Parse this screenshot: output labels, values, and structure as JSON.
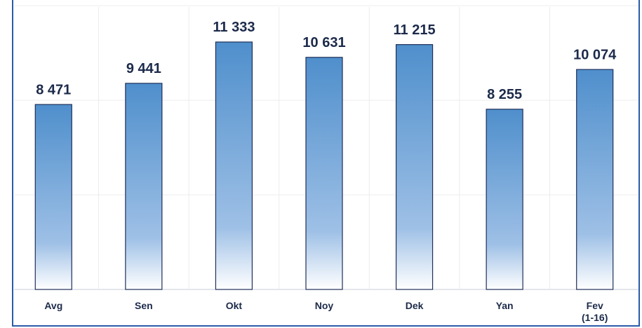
{
  "chart_data": {
    "type": "bar",
    "categories": [
      "Avg",
      "Sen",
      "Okt",
      "Noy",
      "Dek",
      "Yan",
      "Fev\n(1-16)"
    ],
    "values": [
      8471,
      9441,
      11333,
      10631,
      11215,
      8255,
      10074
    ],
    "value_labels": [
      "8 471",
      "9 441",
      "11 333",
      "10 631",
      "11 215",
      "8 255",
      "10 074"
    ],
    "color": "#4f8fcc",
    "ylim": [
      0,
      13000
    ],
    "yticks": [
      0,
      4333,
      8667,
      13000
    ],
    "grid": true
  }
}
